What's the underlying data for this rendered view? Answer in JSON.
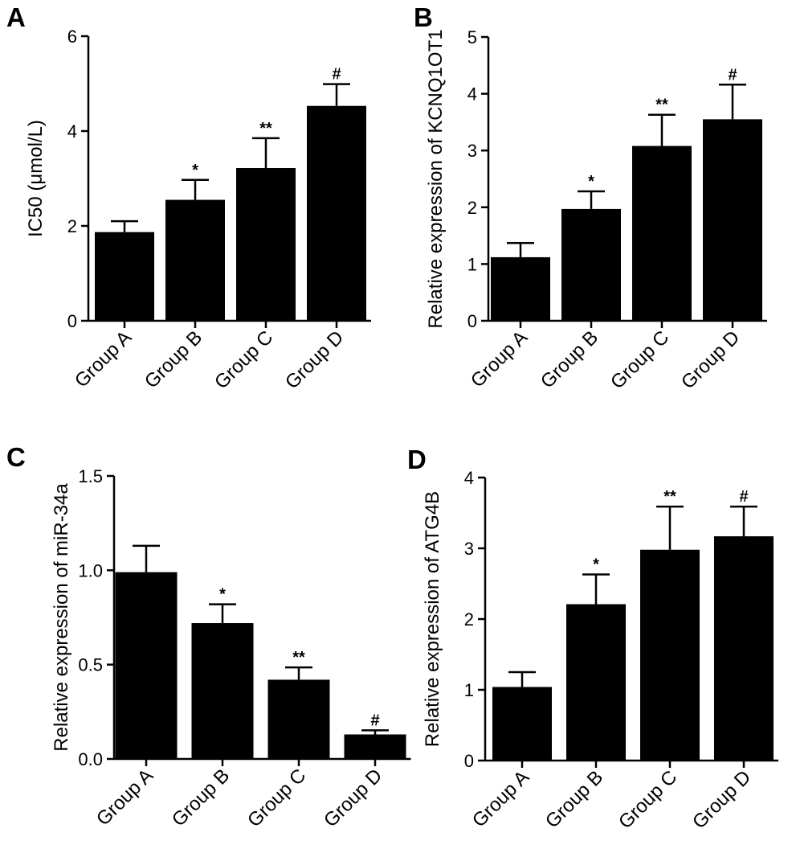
{
  "chart_data": [
    {
      "panel": "A",
      "type": "bar",
      "title": "",
      "xlabel": "",
      "ylabel": "IC50 (μmol/L)",
      "ylim": [
        0,
        6
      ],
      "yticks": [
        0,
        2,
        4,
        6
      ],
      "ytick_labels": [
        "0",
        "2",
        "4",
        "6"
      ],
      "categories": [
        "Group A",
        "Group B",
        "Group C",
        "Group D"
      ],
      "values": [
        1.87,
        2.55,
        3.22,
        4.53
      ],
      "errors": [
        0.23,
        0.42,
        0.63,
        0.46
      ],
      "significance": [
        "",
        "*",
        "**",
        "#"
      ],
      "bar_color": "#000000"
    },
    {
      "panel": "B",
      "type": "bar",
      "title": "",
      "xlabel": "",
      "ylabel": "Relative expression of KCNQ1OT1",
      "ylim": [
        0,
        5
      ],
      "yticks": [
        0,
        1,
        2,
        3,
        4,
        5
      ],
      "ytick_labels": [
        "0",
        "1",
        "2",
        "3",
        "4",
        "5"
      ],
      "categories": [
        "Group A",
        "Group B",
        "Group C",
        "Group D"
      ],
      "values": [
        1.12,
        1.97,
        3.08,
        3.55
      ],
      "errors": [
        0.25,
        0.31,
        0.55,
        0.61
      ],
      "significance": [
        "",
        "*",
        "**",
        "#"
      ],
      "bar_color": "#000000"
    },
    {
      "panel": "C",
      "type": "bar",
      "title": "",
      "xlabel": "",
      "ylabel": "Relative expression of miR-34a",
      "ylim": [
        0,
        1.5
      ],
      "yticks": [
        0,
        0.5,
        1,
        1.5
      ],
      "ytick_labels": [
        "0.0",
        "0.5",
        "1.0",
        "1.5"
      ],
      "categories": [
        "Group A",
        "Group B",
        "Group C",
        "Group D"
      ],
      "values": [
        0.99,
        0.72,
        0.42,
        0.13
      ],
      "errors": [
        0.14,
        0.1,
        0.065,
        0.022
      ],
      "significance": [
        "",
        "*",
        "**",
        "#"
      ],
      "bar_color": "#000000"
    },
    {
      "panel": "D",
      "type": "bar",
      "title": "",
      "xlabel": "",
      "ylabel": "Relative expression of ATG4B",
      "ylim": [
        0,
        4
      ],
      "yticks": [
        0,
        1,
        2,
        3,
        4
      ],
      "ytick_labels": [
        "0",
        "1",
        "2",
        "3",
        "4"
      ],
      "categories": [
        "Group A",
        "Group B",
        "Group C",
        "Group D"
      ],
      "values": [
        1.04,
        2.21,
        2.98,
        3.17
      ],
      "errors": [
        0.21,
        0.42,
        0.61,
        0.42
      ],
      "significance": [
        "",
        "*",
        "**",
        "#"
      ],
      "bar_color": "#000000"
    }
  ]
}
